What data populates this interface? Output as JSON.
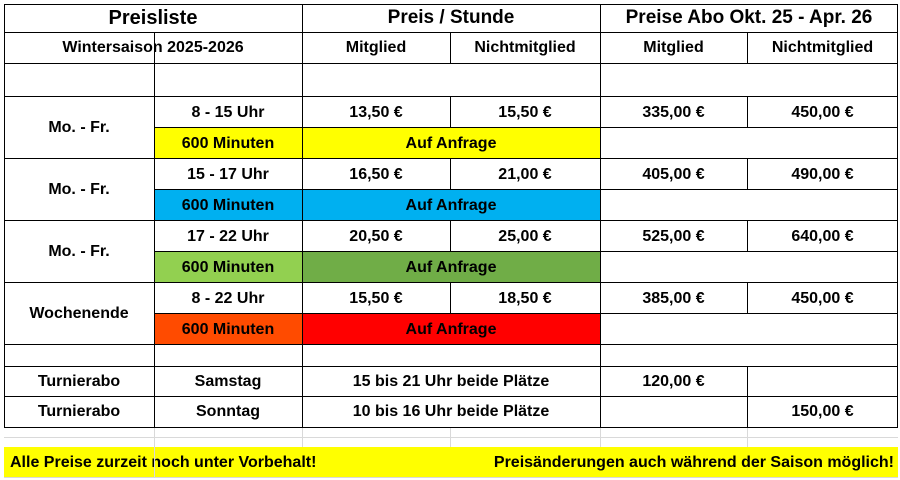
{
  "header": {
    "title": "Preisliste",
    "season": "Wintersaison 2025-2026",
    "price_per_hour": "Preis / Stunde",
    "abo_title": "Preise Abo Okt. 25 - Apr. 26",
    "member": "Mitglied",
    "non_member": "Nichtmitglied",
    "abo_member": "Mitglied",
    "abo_non_member": "Nichtmitglied"
  },
  "blocks": [
    {
      "day": "Mo. - Fr.",
      "time": "8 - 15 Uhr",
      "member_price": "13,50 €",
      "non_member_price": "15,50 €",
      "abo_member": "335,00 €",
      "abo_non_member": "450,00 €",
      "minutes": "600 Minuten",
      "request": "Auf Anfrage",
      "minutes_color": "#ffff00",
      "request_color": "#ffff00"
    },
    {
      "day": "Mo. - Fr.",
      "time": "15 - 17 Uhr",
      "member_price": "16,50 €",
      "non_member_price": "21,00 €",
      "abo_member": "405,00 €",
      "abo_non_member": "490,00 €",
      "minutes": "600 Minuten",
      "request": "Auf Anfrage",
      "minutes_color": "#00b0f0",
      "request_color": "#00b0f0"
    },
    {
      "day": "Mo. - Fr.",
      "time": "17 - 22 Uhr",
      "member_price": "20,50 €",
      "non_member_price": "25,00 €",
      "abo_member": "525,00 €",
      "abo_non_member": "640,00 €",
      "minutes": "600 Minuten",
      "request": "Auf Anfrage",
      "minutes_color": "#92d050",
      "request_color": "#70ad47"
    },
    {
      "day": "Wochenende",
      "time": "8 - 22 Uhr",
      "member_price": "15,50 €",
      "non_member_price": "18,50 €",
      "abo_member": "385,00 €",
      "abo_non_member": "450,00 €",
      "minutes": "600 Minuten",
      "request": "Auf Anfrage",
      "minutes_color": "#ff4b00",
      "request_color": "#ff0000"
    }
  ],
  "tournament": [
    {
      "label": "Turnierabo",
      "day": "Samstag",
      "info": "15 bis 21 Uhr beide Plätze",
      "abo_member": "120,00 €",
      "abo_non_member": ""
    },
    {
      "label": "Turnierabo",
      "day": "Sonntag",
      "info": "10 bis 16 Uhr beide Plätze",
      "abo_member": "",
      "abo_non_member": "150,00 €"
    }
  ],
  "footer": {
    "note_left": "Alle Preise zurzeit noch unter Vorbehalt!",
    "note_right": "Preisänderungen auch während der Saison möglich!",
    "color": "#ffff00"
  }
}
